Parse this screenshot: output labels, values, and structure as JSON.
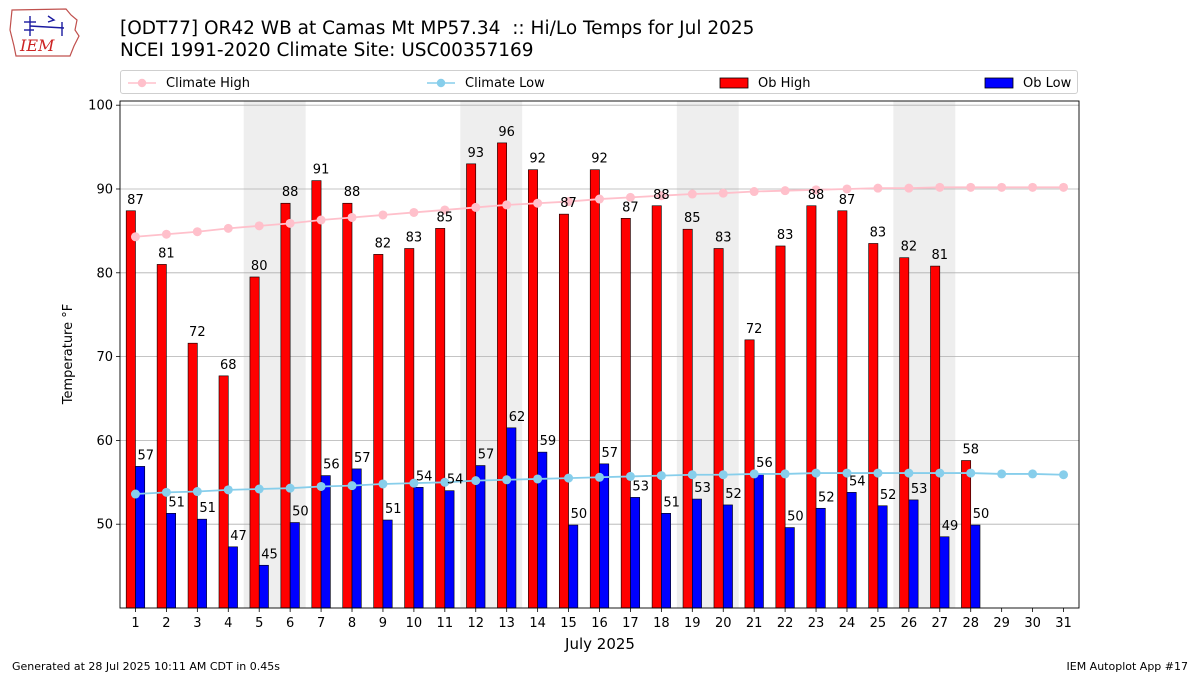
{
  "header": {
    "title_line1": "[ODT77] OR42 WB at Camas Mt MP57.34  :: Hi/Lo Temps for Jul 2025",
    "title_line2": "NCEI 1991-2020 Climate Site: USC00357169"
  },
  "logo": {
    "text": "IEM"
  },
  "footer": {
    "left": "Generated at 28 Jul 2025 10:11 AM CDT in 0.45s",
    "right": "IEM Autoplot App #17"
  },
  "colors": {
    "ob_high": "#ff0000",
    "ob_low": "#0000ff",
    "climate_high": "#ffc0cb",
    "climate_low": "#87ceeb",
    "weekend_band": "#eeeeee",
    "grid": "#b0b0b0"
  },
  "chart_data": {
    "type": "bar",
    "xlabel": "July 2025",
    "ylabel": "Temperature °F",
    "ylim": [
      40,
      100.5
    ],
    "xlim": [
      0.5,
      31.5
    ],
    "yticks": [
      50,
      60,
      70,
      80,
      90,
      100
    ],
    "grid": "horizontal",
    "legend_position": "top",
    "days": [
      1,
      2,
      3,
      4,
      5,
      6,
      7,
      8,
      9,
      10,
      11,
      12,
      13,
      14,
      15,
      16,
      17,
      18,
      19,
      20,
      21,
      22,
      23,
      24,
      25,
      26,
      27,
      28,
      29,
      30,
      31
    ],
    "weekend_bands": [
      [
        4.5,
        6.5
      ],
      [
        11.5,
        13.5
      ],
      [
        18.5,
        20.5
      ],
      [
        25.5,
        27.5
      ]
    ],
    "legend": [
      "Climate High",
      "Climate Low",
      "Ob High",
      "Ob Low"
    ],
    "series": [
      {
        "name": "Ob High",
        "kind": "bar",
        "color": "#ff0000",
        "values": [
          87.4,
          81.0,
          71.6,
          67.7,
          79.5,
          88.3,
          91.0,
          88.3,
          82.2,
          82.9,
          85.3,
          93.0,
          95.5,
          92.3,
          87.0,
          92.3,
          86.5,
          88.0,
          85.2,
          82.9,
          72.0,
          83.2,
          88.0,
          87.4,
          83.5,
          81.8,
          80.8,
          57.6,
          null,
          null,
          null
        ],
        "labels": [
          "87",
          "81",
          "72",
          "68",
          "80",
          "88",
          "91",
          "88",
          "82",
          "83",
          "85",
          "93",
          "96",
          "92",
          "87",
          "92",
          "87",
          "88",
          "85",
          "83",
          "72",
          "83",
          "88",
          "87",
          "83",
          "82",
          "81",
          "58",
          null,
          null,
          null
        ]
      },
      {
        "name": "Ob Low",
        "kind": "bar",
        "color": "#0000ff",
        "values": [
          56.9,
          51.3,
          50.6,
          47.3,
          45.1,
          50.2,
          55.8,
          56.6,
          50.5,
          54.4,
          54.0,
          57.0,
          61.5,
          58.6,
          49.9,
          57.2,
          53.2,
          51.3,
          53.0,
          52.3,
          56.0,
          49.6,
          51.9,
          53.8,
          52.2,
          52.9,
          48.5,
          49.9,
          null,
          null,
          null
        ],
        "labels": [
          "57",
          "51",
          "51",
          "47",
          "45",
          "50",
          "56",
          "57",
          "51",
          "54",
          "54",
          "57",
          "62",
          "59",
          "50",
          "57",
          "53",
          "51",
          "53",
          "52",
          "56",
          "50",
          "52",
          "54",
          "52",
          "53",
          "49",
          "50",
          null,
          null,
          null
        ]
      },
      {
        "name": "Climate High",
        "kind": "line",
        "color": "#ffc0cb",
        "values": [
          84.3,
          84.6,
          84.9,
          85.3,
          85.6,
          85.9,
          86.3,
          86.6,
          86.9,
          87.2,
          87.5,
          87.8,
          88.1,
          88.3,
          88.5,
          88.8,
          89.0,
          89.2,
          89.4,
          89.5,
          89.7,
          89.8,
          89.9,
          90.0,
          90.1,
          90.1,
          90.2,
          90.2,
          90.2,
          90.2,
          90.2
        ]
      },
      {
        "name": "Climate Low",
        "kind": "line",
        "color": "#87ceeb",
        "values": [
          53.6,
          53.8,
          53.9,
          54.1,
          54.2,
          54.3,
          54.5,
          54.6,
          54.8,
          54.9,
          55.0,
          55.2,
          55.3,
          55.4,
          55.5,
          55.6,
          55.7,
          55.8,
          55.9,
          55.9,
          56.0,
          56.0,
          56.1,
          56.1,
          56.1,
          56.1,
          56.1,
          56.1,
          56.0,
          56.0,
          55.9
        ]
      }
    ]
  }
}
